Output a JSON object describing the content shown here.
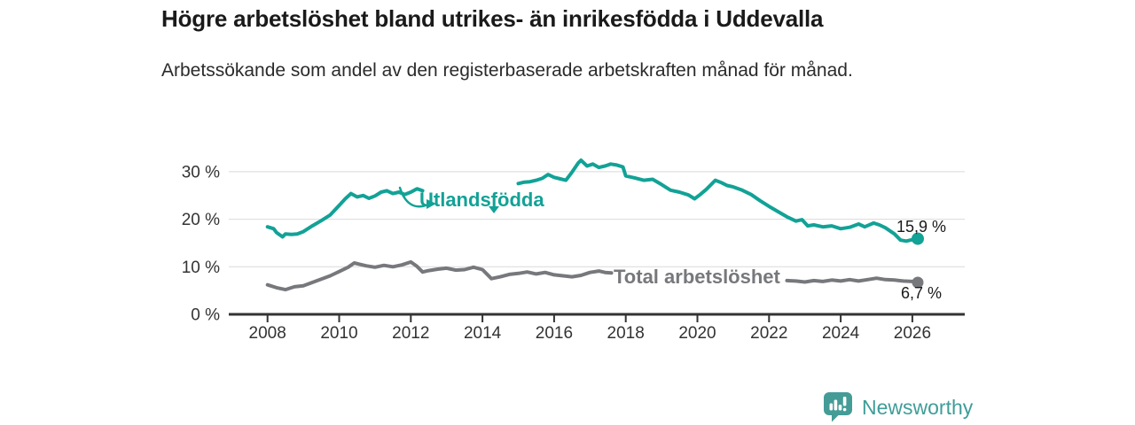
{
  "header": {
    "title": "Högre arbetslöshet bland utrikes- än inrikesfödda i Uddevalla",
    "subtitle": "Arbetssökande som andel av den registerbaserade arbetskraften månad för månad."
  },
  "chart_data": {
    "type": "line",
    "unit": "%",
    "grid": "horizontal-only",
    "x_axis": {
      "range": [
        2006.9,
        2027.5
      ],
      "ticks": [
        2008,
        2010,
        2012,
        2014,
        2016,
        2018,
        2020,
        2022,
        2024,
        2026
      ]
    },
    "y_axis": {
      "range": [
        0,
        34
      ],
      "ticks": [
        {
          "value": 0,
          "label": "0 %"
        },
        {
          "value": 10,
          "label": "10 %"
        },
        {
          "value": 20,
          "label": "20 %"
        },
        {
          "value": 30,
          "label": "30 %"
        }
      ]
    },
    "series": [
      {
        "name": "Utlandsfödda",
        "color": "#12a296",
        "last_value": 15.9,
        "last_value_label": "15,9 %",
        "segments": [
          [
            [
              2008.0,
              18.4
            ],
            [
              2008.17,
              18.0
            ],
            [
              2008.25,
              17.2
            ],
            [
              2008.42,
              16.3
            ],
            [
              2008.5,
              16.9
            ],
            [
              2008.67,
              16.8
            ],
            [
              2008.83,
              16.9
            ],
            [
              2009.0,
              17.4
            ],
            [
              2009.25,
              18.6
            ],
            [
              2009.5,
              19.7
            ],
            [
              2009.75,
              20.9
            ],
            [
              2010.0,
              22.9
            ],
            [
              2010.17,
              24.3
            ],
            [
              2010.33,
              25.4
            ],
            [
              2010.5,
              24.7
            ],
            [
              2010.67,
              25.0
            ],
            [
              2010.83,
              24.4
            ],
            [
              2011.0,
              24.9
            ],
            [
              2011.17,
              25.7
            ],
            [
              2011.33,
              26.0
            ],
            [
              2011.5,
              25.4
            ],
            [
              2011.67,
              25.7
            ],
            [
              2011.83,
              25.2
            ],
            [
              2012.0,
              25.7
            ],
            [
              2012.17,
              26.4
            ],
            [
              2012.33,
              26.0
            ]
          ],
          [
            [
              2015.0,
              27.5
            ],
            [
              2015.17,
              27.8
            ],
            [
              2015.33,
              27.9
            ],
            [
              2015.5,
              28.2
            ],
            [
              2015.67,
              28.6
            ],
            [
              2015.83,
              29.4
            ],
            [
              2016.0,
              28.8
            ],
            [
              2016.17,
              28.5
            ],
            [
              2016.33,
              28.2
            ],
            [
              2016.5,
              29.9
            ],
            [
              2016.67,
              31.8
            ],
            [
              2016.75,
              32.4
            ],
            [
              2016.92,
              31.2
            ],
            [
              2017.08,
              31.6
            ],
            [
              2017.25,
              30.9
            ],
            [
              2017.42,
              31.2
            ],
            [
              2017.58,
              31.6
            ],
            [
              2017.75,
              31.4
            ],
            [
              2017.92,
              31.0
            ],
            [
              2018.0,
              29.1
            ],
            [
              2018.25,
              28.7
            ],
            [
              2018.5,
              28.2
            ],
            [
              2018.75,
              28.4
            ],
            [
              2019.0,
              27.3
            ],
            [
              2019.25,
              26.1
            ],
            [
              2019.5,
              25.7
            ],
            [
              2019.75,
              25.1
            ],
            [
              2019.92,
              24.3
            ],
            [
              2020.08,
              25.2
            ],
            [
              2020.25,
              26.3
            ],
            [
              2020.5,
              28.2
            ],
            [
              2020.67,
              27.7
            ],
            [
              2020.83,
              27.1
            ],
            [
              2021.0,
              26.8
            ],
            [
              2021.25,
              26.1
            ],
            [
              2021.5,
              25.2
            ],
            [
              2021.75,
              23.9
            ],
            [
              2022.0,
              22.7
            ],
            [
              2022.25,
              21.6
            ],
            [
              2022.5,
              20.5
            ],
            [
              2022.75,
              19.6
            ],
            [
              2022.92,
              19.9
            ],
            [
              2023.08,
              18.6
            ],
            [
              2023.25,
              18.8
            ],
            [
              2023.5,
              18.4
            ],
            [
              2023.75,
              18.6
            ],
            [
              2024.0,
              18.0
            ],
            [
              2024.25,
              18.3
            ],
            [
              2024.5,
              19.0
            ],
            [
              2024.67,
              18.4
            ],
            [
              2024.92,
              19.2
            ],
            [
              2025.08,
              18.8
            ],
            [
              2025.25,
              18.2
            ],
            [
              2025.5,
              16.9
            ],
            [
              2025.67,
              15.6
            ],
            [
              2025.83,
              15.4
            ],
            [
              2026.0,
              15.7
            ],
            [
              2026.15,
              15.9
            ]
          ]
        ]
      },
      {
        "name": "Total arbetslöshet",
        "color": "#77787c",
        "last_value": 6.7,
        "last_value_label": "6,7 %",
        "segments": [
          [
            [
              2008.0,
              6.2
            ],
            [
              2008.25,
              5.6
            ],
            [
              2008.5,
              5.2
            ],
            [
              2008.75,
              5.8
            ],
            [
              2009.0,
              6.0
            ],
            [
              2009.25,
              6.7
            ],
            [
              2009.5,
              7.4
            ],
            [
              2009.75,
              8.1
            ],
            [
              2010.0,
              9.0
            ],
            [
              2010.25,
              9.9
            ],
            [
              2010.42,
              10.8
            ],
            [
              2010.58,
              10.5
            ],
            [
              2010.75,
              10.2
            ],
            [
              2011.0,
              9.9
            ],
            [
              2011.25,
              10.3
            ],
            [
              2011.5,
              10.0
            ],
            [
              2011.75,
              10.4
            ],
            [
              2012.0,
              11.0
            ],
            [
              2012.17,
              10.1
            ],
            [
              2012.33,
              8.9
            ],
            [
              2012.5,
              9.2
            ],
            [
              2012.75,
              9.5
            ],
            [
              2013.0,
              9.7
            ],
            [
              2013.25,
              9.3
            ],
            [
              2013.5,
              9.4
            ],
            [
              2013.75,
              9.9
            ],
            [
              2014.0,
              9.4
            ],
            [
              2014.25,
              7.5
            ],
            [
              2014.5,
              7.9
            ],
            [
              2014.75,
              8.4
            ],
            [
              2015.0,
              8.6
            ],
            [
              2015.25,
              8.9
            ],
            [
              2015.5,
              8.5
            ],
            [
              2015.75,
              8.8
            ],
            [
              2016.0,
              8.3
            ],
            [
              2016.25,
              8.1
            ],
            [
              2016.5,
              7.9
            ],
            [
              2016.75,
              8.2
            ],
            [
              2017.0,
              8.8
            ],
            [
              2017.25,
              9.1
            ],
            [
              2017.42,
              8.8
            ],
            [
              2017.6,
              8.7
            ]
          ],
          [
            [
              2022.5,
              7.1
            ],
            [
              2022.75,
              7.0
            ],
            [
              2023.0,
              6.8
            ],
            [
              2023.25,
              7.1
            ],
            [
              2023.5,
              6.9
            ],
            [
              2023.75,
              7.2
            ],
            [
              2024.0,
              7.0
            ],
            [
              2024.25,
              7.3
            ],
            [
              2024.5,
              7.0
            ],
            [
              2024.75,
              7.3
            ],
            [
              2025.0,
              7.6
            ],
            [
              2025.25,
              7.3
            ],
            [
              2025.5,
              7.2
            ],
            [
              2025.75,
              7.0
            ],
            [
              2026.0,
              6.9
            ],
            [
              2026.15,
              6.7
            ]
          ]
        ]
      }
    ]
  },
  "footer": {
    "brand": "Newsworthy",
    "brand_color": "#3f9d98",
    "logo_color": "#459c97"
  }
}
